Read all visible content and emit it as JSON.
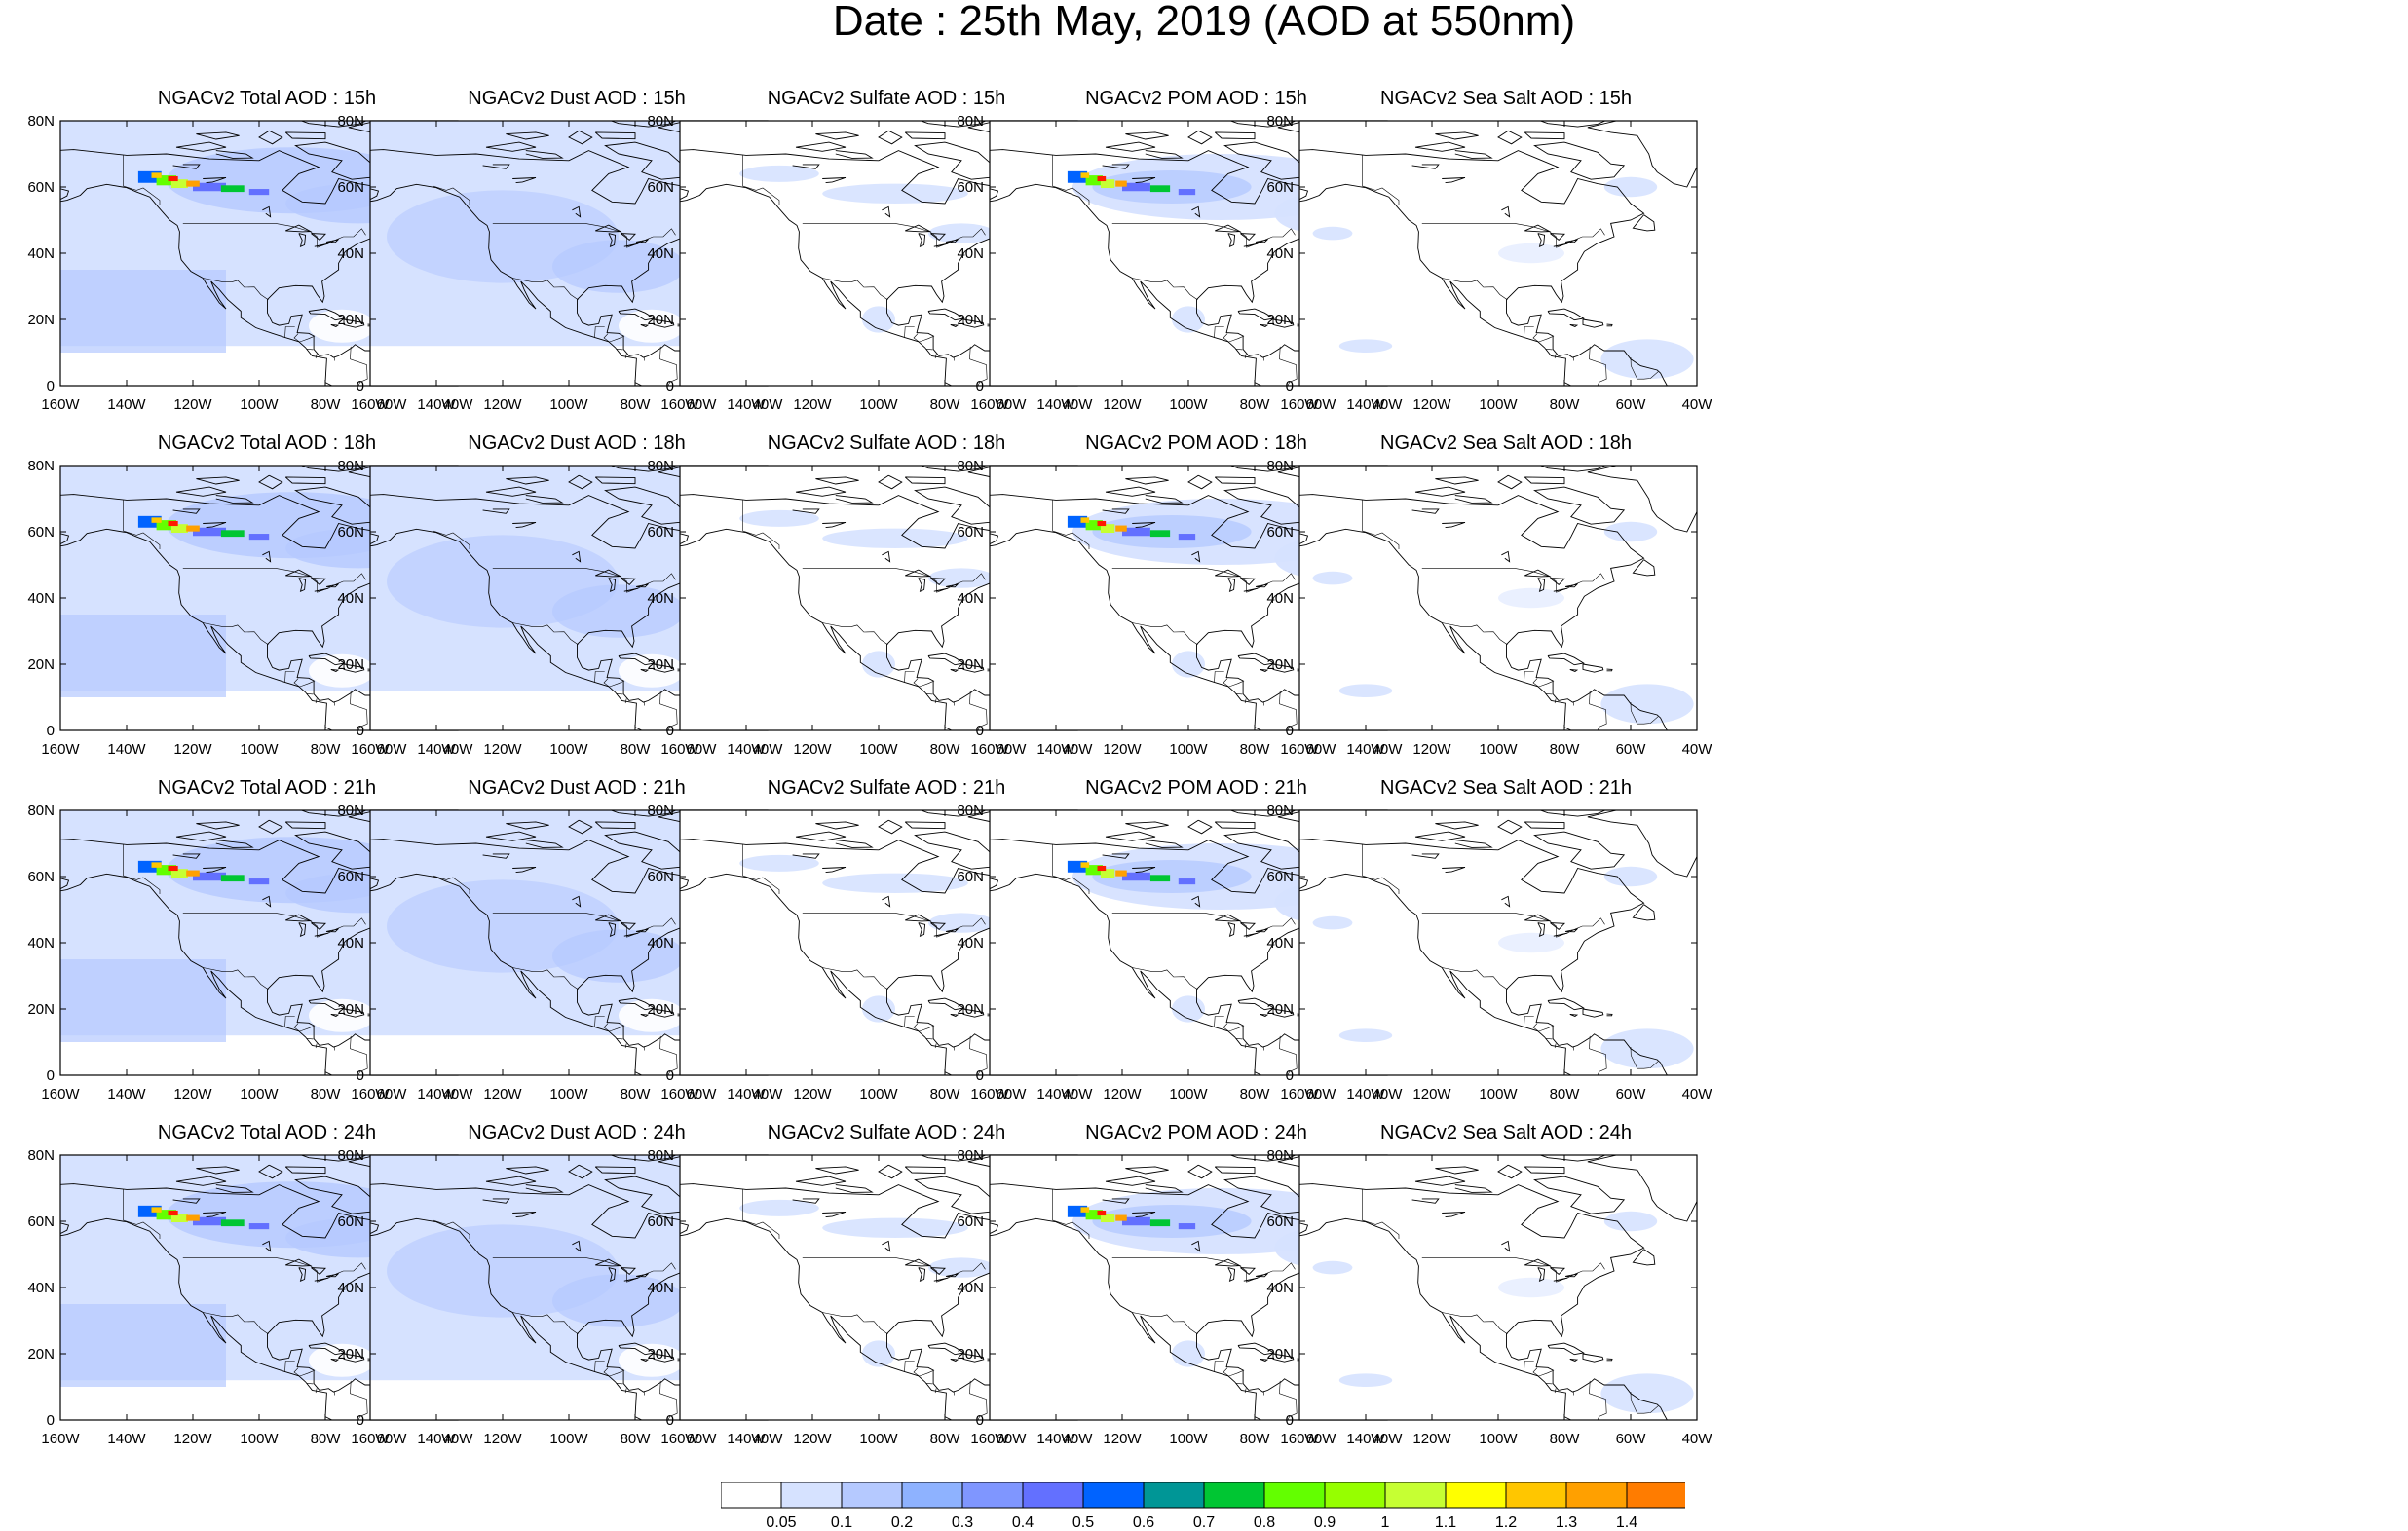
{
  "title": "Date : 25th May, 2019 (AOD at 550nm)",
  "lat_labels": [
    "80N",
    "60N",
    "40N",
    "20N",
    "0"
  ],
  "lon_labels": [
    "160W",
    "140W",
    "120W",
    "100W",
    "80W",
    "60W",
    "40W"
  ],
  "colorbar": {
    "colors": [
      "#ffffff",
      "#d6e2ff",
      "#b5c9ff",
      "#8eb2ff",
      "#7f96ff",
      "#6370ff",
      "#0063ff",
      "#009696",
      "#00c633",
      "#63ff00",
      "#96ff00",
      "#c6ff33",
      "#ffff00",
      "#ffc600",
      "#ffa000",
      "#ff7c00",
      "#ff1900"
    ],
    "labels": [
      "0.05",
      "0.1",
      "0.2",
      "0.3",
      "0.4",
      "0.5",
      "0.6",
      "0.7",
      "0.8",
      "0.9",
      "1",
      "1.1",
      "1.2",
      "1.3",
      "1.4"
    ]
  },
  "species": [
    {
      "key": "total",
      "titles": [
        "NGACv2 Total AOD : 15h",
        "NGACv2 Total AOD : 18h",
        "NGACv2 Total AOD : 21h",
        "NGACv2 Total AOD : 24h"
      ]
    },
    {
      "key": "dust",
      "titles": [
        "NGACv2 Dust AOD : 15h",
        "NGACv2 Dust AOD : 18h",
        "NGACv2 Dust AOD : 21h",
        "NGACv2 Dust AOD : 24h"
      ]
    },
    {
      "key": "sulfate",
      "titles": [
        "NGACv2 Sulfate AOD : 15h",
        "NGACv2 Sulfate AOD : 18h",
        "NGACv2 Sulfate AOD : 21h",
        "NGACv2 Sulfate AOD : 24h"
      ]
    },
    {
      "key": "pom",
      "titles": [
        "NGACv2 POM AOD : 15h",
        "NGACv2 POM AOD : 18h",
        "NGACv2 POM AOD : 21h",
        "NGACv2 POM AOD : 24h"
      ]
    },
    {
      "key": "seasalt",
      "titles": [
        "NGACv2 Sea Salt AOD : 15h",
        "NGACv2 Sea Salt AOD : 18h",
        "NGACv2 Sea Salt AOD : 21h",
        "NGACv2 Sea Salt  AOD : 24h"
      ]
    }
  ]
}
